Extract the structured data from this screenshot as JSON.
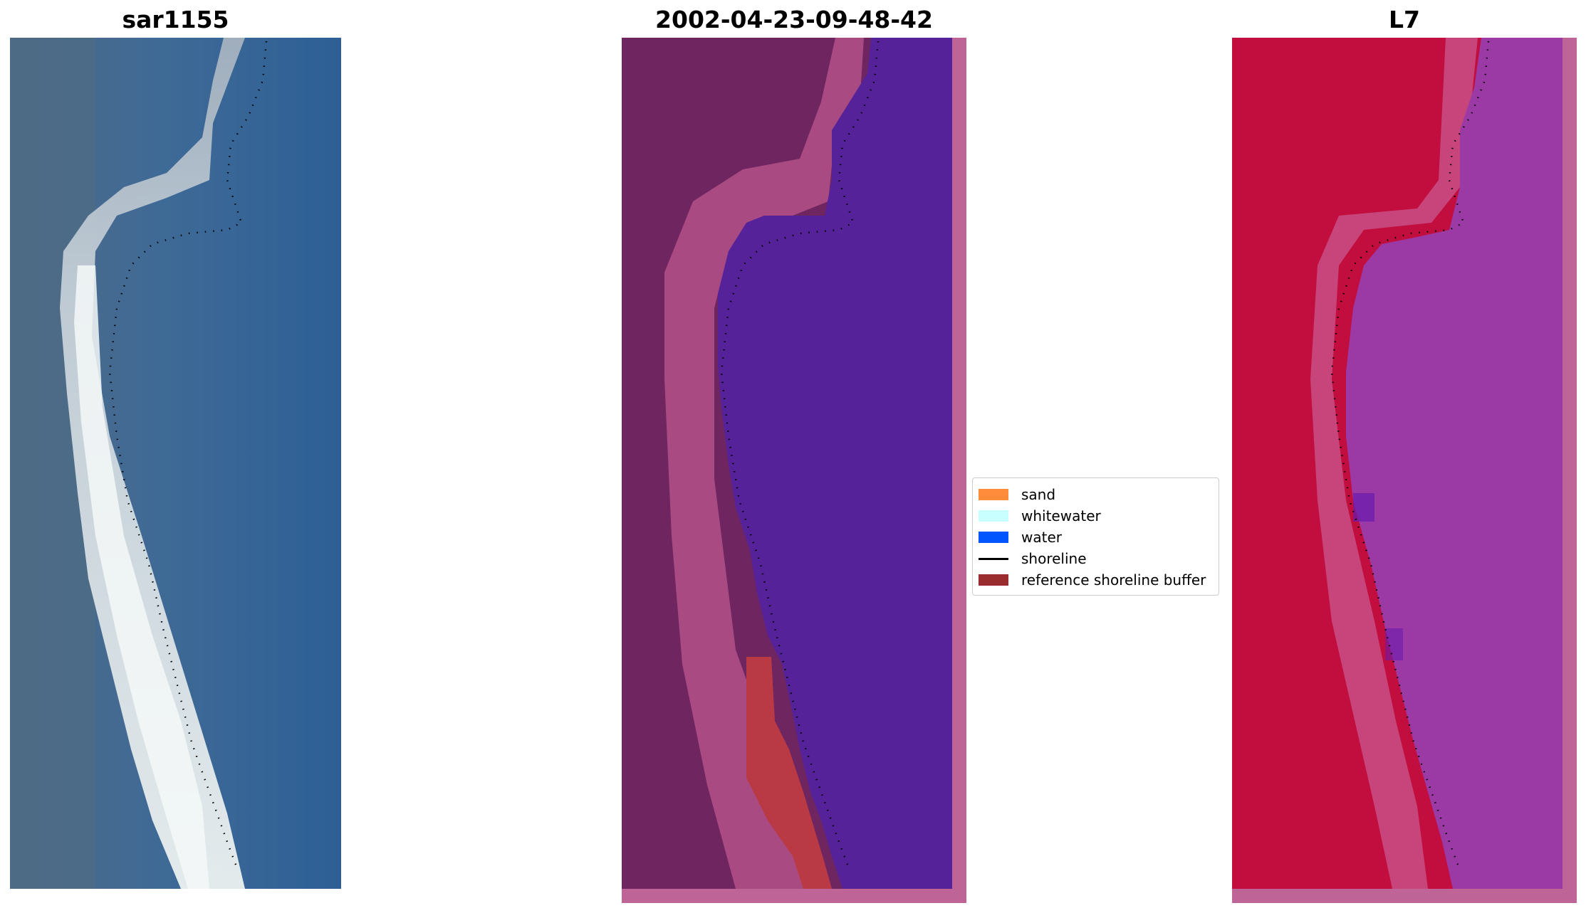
{
  "titles": {
    "rgb": "sar1155",
    "classification": "2002-04-23-09-48-42",
    "mndwi": "L7"
  },
  "legend": {
    "items": [
      {
        "label": "sand",
        "color": "#ff8c3a",
        "kind": "patch"
      },
      {
        "label": "whitewater",
        "color": "#c8ffff",
        "kind": "patch"
      },
      {
        "label": "water",
        "color": "#0055ff",
        "kind": "patch"
      },
      {
        "label": "shoreline",
        "color": "#000000",
        "kind": "line"
      },
      {
        "label": "reference shoreline buffer",
        "color": "#9a2c30",
        "kind": "patch"
      }
    ]
  },
  "colors": {
    "rgb_water": "#2f5f95",
    "rgb_land": "#4f6a86",
    "rgb_beach": "#dfe6ea",
    "class_land": "#6e2560",
    "class_water": "#55229a",
    "class_buffer": "#b93a44",
    "class_border": "#bf6497",
    "mndwi_land": "#c20e3e",
    "mndwi_water": "#9b3aa5",
    "mndwi_border": "#bf6497",
    "shoreline": "#000000"
  }
}
